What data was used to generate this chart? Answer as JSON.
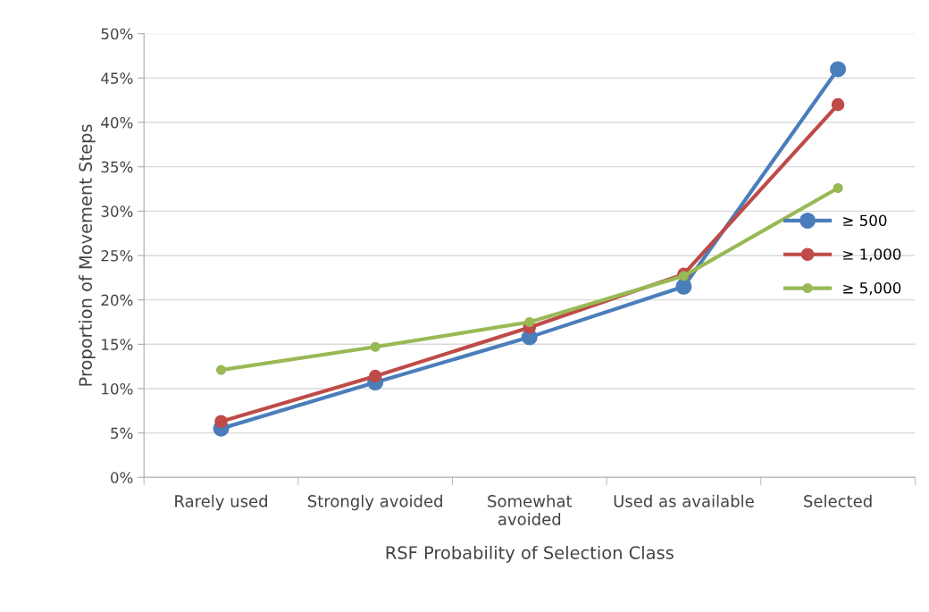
{
  "chart_data": {
    "type": "line",
    "xlabel": "RSF Probability of Selection Class",
    "ylabel": "Proportion of Movement Steps",
    "categories": [
      "Rarely used",
      "Strongly avoided",
      "Somewhat\navoided",
      "Used as available",
      "Selected"
    ],
    "series": [
      {
        "name": "≥ 500",
        "color": "#4a7ebb",
        "values": [
          5.5,
          10.7,
          15.8,
          21.5,
          46.0
        ]
      },
      {
        "name": "≥ 1,000",
        "color": "#be4b48",
        "values": [
          6.3,
          11.4,
          16.9,
          22.9,
          42.0
        ]
      },
      {
        "name": "≥ 5,000",
        "color": "#98b954",
        "values": [
          12.1,
          14.7,
          17.5,
          22.7,
          32.6
        ]
      }
    ],
    "ylim": [
      0,
      50
    ],
    "yticks": [
      {
        "value": 0,
        "label": "0%"
      },
      {
        "value": 5,
        "label": "5%"
      },
      {
        "value": 10,
        "label": "10%"
      },
      {
        "value": 15,
        "label": "15%"
      },
      {
        "value": 20,
        "label": "20%"
      },
      {
        "value": 25,
        "label": "25%"
      },
      {
        "value": 30,
        "label": "30%"
      },
      {
        "value": 35,
        "label": "35%"
      },
      {
        "value": 40,
        "label": "40%"
      },
      {
        "value": 45,
        "label": "45%"
      },
      {
        "value": 50,
        "label": "50%"
      }
    ],
    "grid": "y",
    "legend": "center right",
    "marker": "circle",
    "line_style": "solid"
  }
}
